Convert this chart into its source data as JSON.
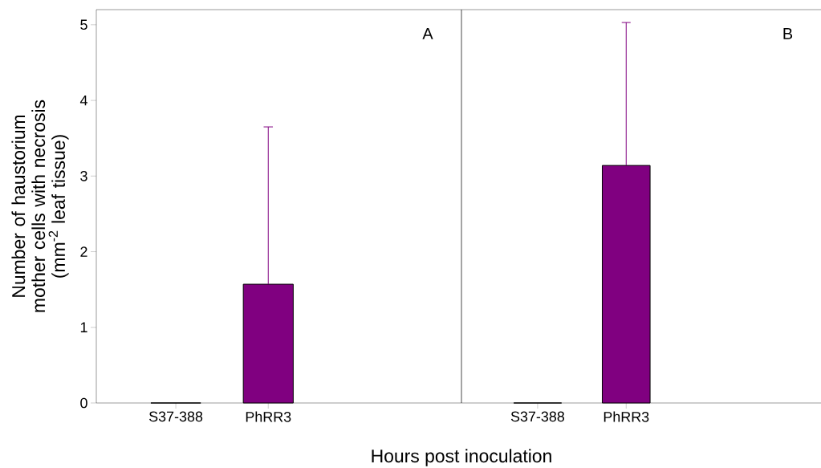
{
  "chart_data": [
    {
      "type": "bar",
      "ylabel": "Number of haustorium mother cells with necrosis (mm$^{-2}$ leaf tissue)",
      "xlabel": "Hours post inoculation",
      "categories": [
        "S37-388",
        "PhRR3"
      ],
      "values": [
        0,
        1.57
      ],
      "errors": [
        null,
        [
          1.57,
          3.65
        ]
      ],
      "color": "#800080",
      "ylim": [
        0,
        5.2
      ],
      "yticks": [
        0,
        1,
        2,
        3,
        4,
        5
      ],
      "annotations": [
        "A"
      ]
    },
    {
      "type": "bar",
      "categories": [
        "S37-388",
        "PhRR3"
      ],
      "values": [
        0,
        3.14
      ],
      "errors": [
        null,
        [
          3.14,
          5.03
        ]
      ],
      "color": "#800080",
      "ylim": [
        0,
        5.2
      ],
      "yticks": [
        0,
        1,
        2,
        3,
        4,
        5
      ],
      "tick_labels": "x",
      "annotations": [
        "B"
      ]
    }
  ]
}
